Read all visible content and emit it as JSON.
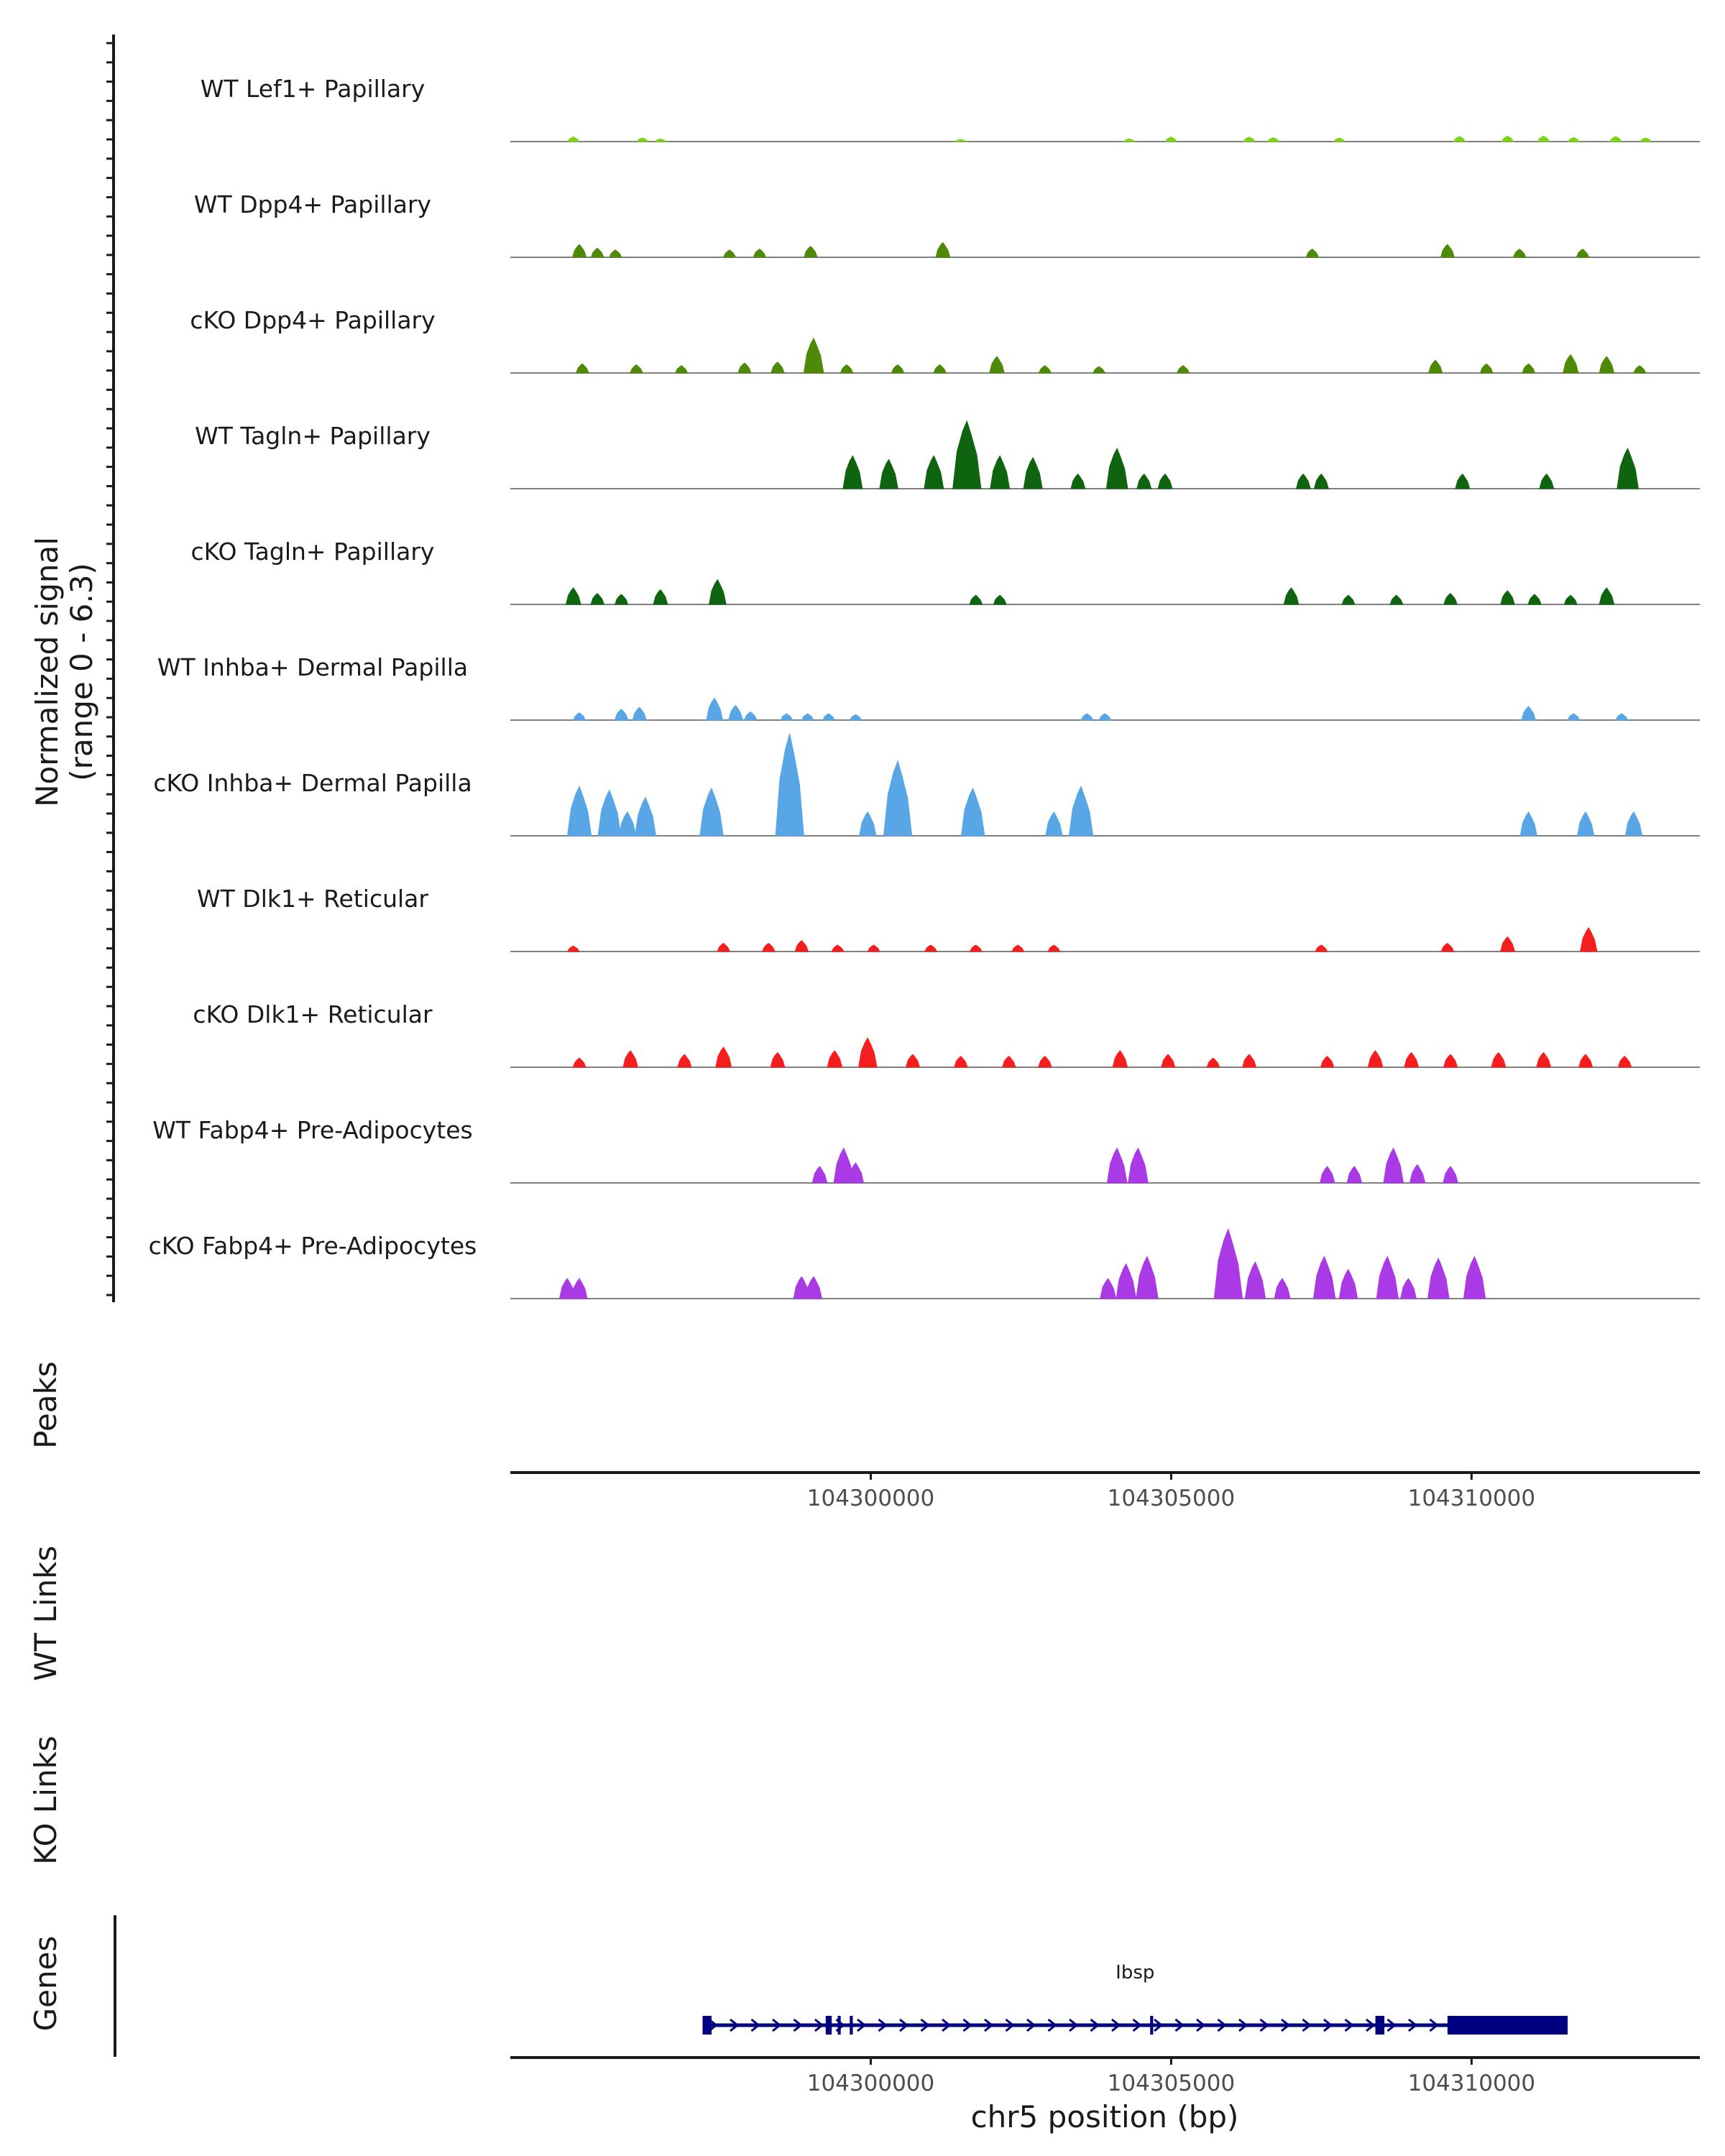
{
  "chart_data": {
    "type": "area",
    "region": "chr5",
    "xlim": [
      104294000,
      104313800
    ],
    "signal_ylabel": "Normalized signal",
    "signal_range_label": "(range 0 - 6.3)",
    "ylim": [
      0,
      6.3
    ],
    "xlabel": "chr5 position (bp)",
    "x_ticks": [
      "104300000",
      "104305000",
      "104310000"
    ],
    "x_tick_values": [
      104300000,
      104305000,
      104310000
    ],
    "panel_labels": [
      "Peaks",
      "WT Links",
      "KO Links",
      "Genes"
    ],
    "series": [
      {
        "name": "WT Lef1+ Papillary",
        "color": "#7cd319",
        "peaks": [
          [
            104295050,
            0.25
          ],
          [
            104296200,
            0.2
          ],
          [
            104296500,
            0.15
          ],
          [
            104301500,
            0.12
          ],
          [
            104304300,
            0.15
          ],
          [
            104305000,
            0.25
          ],
          [
            104306300,
            0.25
          ],
          [
            104306700,
            0.22
          ],
          [
            104307800,
            0.2
          ],
          [
            104309800,
            0.28
          ],
          [
            104310600,
            0.3
          ],
          [
            104311200,
            0.3
          ],
          [
            104311700,
            0.22
          ],
          [
            104312400,
            0.28
          ],
          [
            104312900,
            0.2
          ]
        ]
      },
      {
        "name": "WT Dpp4+ Papillary",
        "color": "#4e8a08",
        "peaks": [
          [
            104295150,
            0.7
          ],
          [
            104295450,
            0.5
          ],
          [
            104295750,
            0.4
          ],
          [
            104297650,
            0.4
          ],
          [
            104298150,
            0.45
          ],
          [
            104299000,
            0.6
          ],
          [
            104301200,
            0.8
          ],
          [
            104307350,
            0.45
          ],
          [
            104309600,
            0.7
          ],
          [
            104310800,
            0.45
          ],
          [
            104311850,
            0.45
          ]
        ]
      },
      {
        "name": "cKO Dpp4+ Papillary",
        "color": "#4e8a08",
        "peaks": [
          [
            104295200,
            0.5
          ],
          [
            104296100,
            0.45
          ],
          [
            104296850,
            0.4
          ],
          [
            104297900,
            0.55
          ],
          [
            104298450,
            0.6
          ],
          [
            104299050,
            1.9
          ],
          [
            104299600,
            0.45
          ],
          [
            104300450,
            0.45
          ],
          [
            104301150,
            0.45
          ],
          [
            104302100,
            0.9
          ],
          [
            104302900,
            0.4
          ],
          [
            104303800,
            0.35
          ],
          [
            104305200,
            0.4
          ],
          [
            104309400,
            0.7
          ],
          [
            104310250,
            0.5
          ],
          [
            104310950,
            0.5
          ],
          [
            104311650,
            1.0
          ],
          [
            104312250,
            0.9
          ],
          [
            104312800,
            0.4
          ]
        ]
      },
      {
        "name": "WT Tagln+ Papillary",
        "color": "#0f640f",
        "peaks": [
          [
            104299700,
            1.8
          ],
          [
            104300300,
            1.6
          ],
          [
            104301050,
            1.8
          ],
          [
            104301600,
            3.7
          ],
          [
            104302150,
            1.8
          ],
          [
            104302700,
            1.7
          ],
          [
            104303450,
            0.8
          ],
          [
            104304100,
            2.2
          ],
          [
            104304550,
            0.8
          ],
          [
            104304900,
            0.8
          ],
          [
            104307200,
            0.8
          ],
          [
            104307500,
            0.8
          ],
          [
            104309850,
            0.8
          ],
          [
            104311250,
            0.8
          ],
          [
            104312600,
            2.2
          ]
        ]
      },
      {
        "name": "cKO Tagln+ Papillary",
        "color": "#0f640f",
        "peaks": [
          [
            104295050,
            0.9
          ],
          [
            104295450,
            0.6
          ],
          [
            104295850,
            0.55
          ],
          [
            104296500,
            0.8
          ],
          [
            104297450,
            1.35
          ],
          [
            104301750,
            0.5
          ],
          [
            104302150,
            0.5
          ],
          [
            104307000,
            0.9
          ],
          [
            104307950,
            0.5
          ],
          [
            104308750,
            0.5
          ],
          [
            104309650,
            0.6
          ],
          [
            104310600,
            0.75
          ],
          [
            104311050,
            0.55
          ],
          [
            104311650,
            0.5
          ],
          [
            104312250,
            0.9
          ]
        ]
      },
      {
        "name": "WT Inhba+ Dermal Papilla",
        "color": "#59a6e6",
        "peaks": [
          [
            104295150,
            0.4
          ],
          [
            104295850,
            0.6
          ],
          [
            104296150,
            0.7
          ],
          [
            104297400,
            1.2
          ],
          [
            104297750,
            0.8
          ],
          [
            104298000,
            0.45
          ],
          [
            104298600,
            0.35
          ],
          [
            104298950,
            0.35
          ],
          [
            104299300,
            0.35
          ],
          [
            104299750,
            0.3
          ],
          [
            104303600,
            0.35
          ],
          [
            104303900,
            0.35
          ],
          [
            104310950,
            0.75
          ],
          [
            104311700,
            0.35
          ],
          [
            104312500,
            0.35
          ]
        ]
      },
      {
        "name": "cKO Inhba+ Dermal Papilla",
        "color": "#59a6e6",
        "peaks": [
          [
            104295150,
            2.7
          ],
          [
            104295650,
            2.5
          ],
          [
            104295950,
            1.3
          ],
          [
            104296250,
            2.1
          ],
          [
            104297350,
            2.6
          ],
          [
            104298650,
            5.6
          ],
          [
            104299950,
            1.3
          ],
          [
            104300450,
            4.1
          ],
          [
            104301700,
            2.6
          ],
          [
            104303050,
            1.3
          ],
          [
            104303500,
            2.7
          ],
          [
            104310950,
            1.3
          ],
          [
            104311900,
            1.3
          ],
          [
            104312700,
            1.3
          ]
        ]
      },
      {
        "name": "WT Dlk1+ Reticular",
        "color": "#f51e1e",
        "peaks": [
          [
            104295050,
            0.3
          ],
          [
            104297550,
            0.45
          ],
          [
            104298300,
            0.45
          ],
          [
            104298850,
            0.6
          ],
          [
            104299450,
            0.35
          ],
          [
            104300050,
            0.35
          ],
          [
            104301000,
            0.35
          ],
          [
            104301750,
            0.35
          ],
          [
            104302450,
            0.35
          ],
          [
            104303050,
            0.35
          ],
          [
            104307500,
            0.35
          ],
          [
            104309600,
            0.45
          ],
          [
            104310600,
            0.8
          ],
          [
            104311950,
            1.3
          ]
        ]
      },
      {
        "name": "cKO Dlk1+ Reticular",
        "color": "#f51e1e",
        "peaks": [
          [
            104295150,
            0.5
          ],
          [
            104296000,
            0.9
          ],
          [
            104296900,
            0.7
          ],
          [
            104297550,
            1.1
          ],
          [
            104298450,
            0.8
          ],
          [
            104299400,
            0.9
          ],
          [
            104299950,
            1.6
          ],
          [
            104300700,
            0.7
          ],
          [
            104301500,
            0.6
          ],
          [
            104302300,
            0.6
          ],
          [
            104302900,
            0.6
          ],
          [
            104304150,
            0.9
          ],
          [
            104304950,
            0.7
          ],
          [
            104305700,
            0.5
          ],
          [
            104306300,
            0.7
          ],
          [
            104307600,
            0.6
          ],
          [
            104308400,
            0.9
          ],
          [
            104309000,
            0.8
          ],
          [
            104309650,
            0.7
          ],
          [
            104310450,
            0.8
          ],
          [
            104311200,
            0.8
          ],
          [
            104311900,
            0.7
          ],
          [
            104312550,
            0.6
          ]
        ]
      },
      {
        "name": "WT Fabp4+ Pre-Adipocytes",
        "color": "#aa39e6",
        "peaks": [
          [
            104299150,
            0.9
          ],
          [
            104299550,
            1.9
          ],
          [
            104299750,
            1.1
          ],
          [
            104304100,
            1.9
          ],
          [
            104304450,
            1.9
          ],
          [
            104307600,
            0.9
          ],
          [
            104308050,
            0.9
          ],
          [
            104308700,
            1.9
          ],
          [
            104309100,
            1.0
          ],
          [
            104309650,
            0.9
          ]
        ]
      },
      {
        "name": "cKO Fabp4+ Pre-Adipocytes",
        "color": "#aa39e6",
        "peaks": [
          [
            104294950,
            1.1
          ],
          [
            104295150,
            1.1
          ],
          [
            104298850,
            1.2
          ],
          [
            104299050,
            1.2
          ],
          [
            104303950,
            1.1
          ],
          [
            104304250,
            1.9
          ],
          [
            104304600,
            2.3
          ],
          [
            104305950,
            3.8
          ],
          [
            104306400,
            2.0
          ],
          [
            104306850,
            1.1
          ],
          [
            104307550,
            2.3
          ],
          [
            104307950,
            1.6
          ],
          [
            104308600,
            2.3
          ],
          [
            104308950,
            1.1
          ],
          [
            104309450,
            2.2
          ],
          [
            104310050,
            2.3
          ]
        ]
      }
    ],
    "gene": {
      "name": "Ibsp",
      "start": 104297200,
      "end": 104311600,
      "strand": "+",
      "exons": [
        [
          104297200,
          104297350
        ],
        [
          104299250,
          104299350
        ],
        [
          104299450,
          104299500
        ],
        [
          104299650,
          104299700
        ],
        [
          104304650,
          104304700
        ],
        [
          104308400,
          104308550
        ],
        [
          104309600,
          104311600
        ]
      ]
    }
  }
}
